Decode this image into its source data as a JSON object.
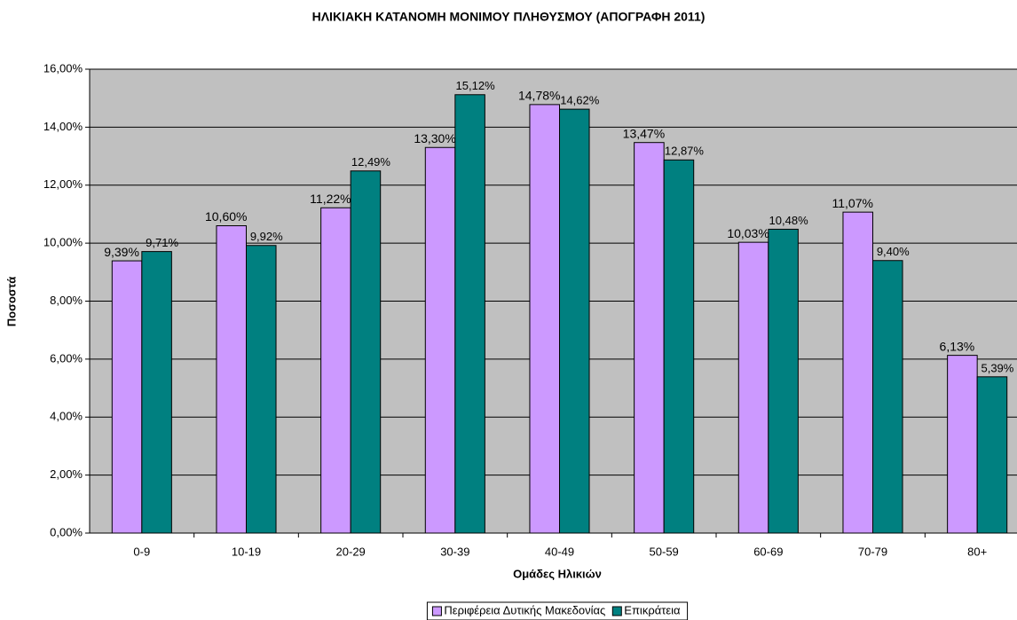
{
  "chart_data": {
    "type": "bar",
    "title": "ΗΛΙΚΙΑΚΗ ΚΑΤΑΝΟΜΗ ΜΟΝΙΜΟΥ ΠΛΗΘΥΣΜΟΥ (ΑΠΟΓΡΑΦΗ 2011)",
    "x_label": "Ομάδες Ηλικιών",
    "y_label": "Ποσοστά",
    "categories": [
      "0-9",
      "10-19",
      "20-29",
      "30-39",
      "40-49",
      "50-59",
      "60-69",
      "70-79",
      "80+"
    ],
    "series": [
      {
        "name": "Περιφέρεια Δυτικής Μακεδονίας",
        "color": "#cc99ff",
        "values": [
          9.39,
          10.6,
          11.22,
          13.3,
          14.78,
          13.47,
          10.03,
          11.07,
          6.13
        ],
        "value_labels": [
          "9,39%",
          "10,60%",
          "11,22%",
          "13,30%",
          "14,78%",
          "13,47%",
          "10,03%",
          "11,07%",
          "6,13%"
        ]
      },
      {
        "name": "Επικράτεια",
        "color": "#008080",
        "values": [
          9.71,
          9.92,
          12.49,
          15.12,
          14.62,
          12.87,
          10.48,
          9.4,
          5.39
        ],
        "value_labels": [
          "9,71%",
          "9,92%",
          "12,49%",
          "15,12%",
          "14,62%",
          "12,87%",
          "10,48%",
          "9,40%",
          "5,39%"
        ]
      }
    ],
    "ylim": [
      0,
      16
    ],
    "yticks": [
      {
        "value": 0,
        "label": "0,00%"
      },
      {
        "value": 2,
        "label": "2,00%"
      },
      {
        "value": 4,
        "label": "4,00%"
      },
      {
        "value": 6,
        "label": "6,00%"
      },
      {
        "value": 8,
        "label": "8,00%"
      },
      {
        "value": 10,
        "label": "10,00%"
      },
      {
        "value": 12,
        "label": "12,00%"
      },
      {
        "value": 14,
        "label": "14,00%"
      },
      {
        "value": 16,
        "label": "16,00%"
      }
    ],
    "grid": true,
    "legend": "bottom"
  }
}
